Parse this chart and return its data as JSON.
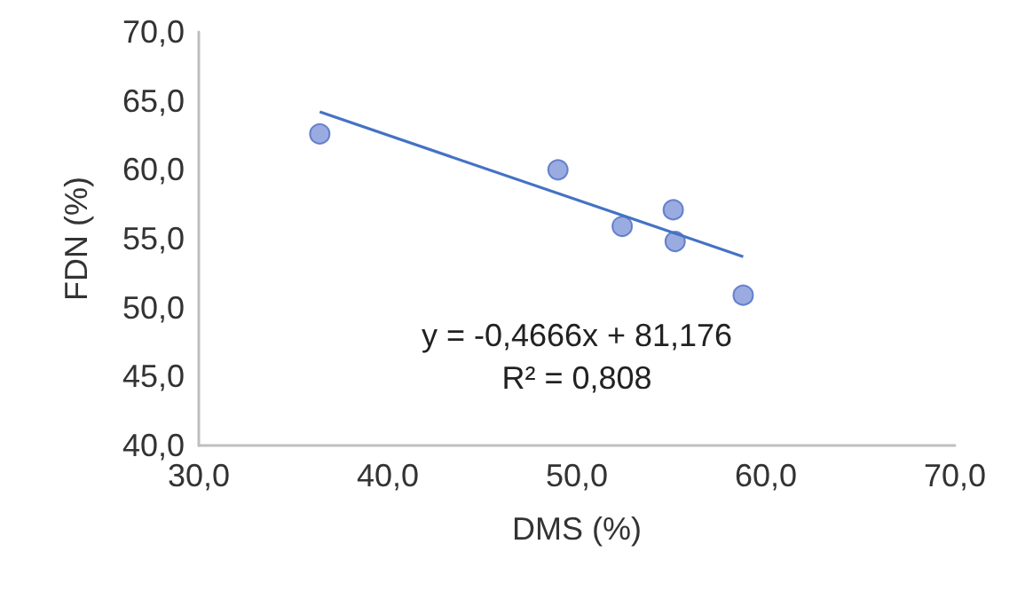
{
  "chart_data": {
    "type": "scatter",
    "xlabel": "DMS (%)",
    "ylabel": "FDN (%)",
    "xlim": [
      30,
      70
    ],
    "xticks": [
      {
        "value": 30,
        "label": "30,0"
      },
      {
        "value": 40,
        "label": "40,0"
      },
      {
        "value": 50,
        "label": "50,0"
      },
      {
        "value": 60,
        "label": "60,0"
      },
      {
        "value": 70,
        "label": "70,0"
      }
    ],
    "ylim": [
      40,
      70
    ],
    "yticks": [
      {
        "value": 40,
        "label": "40,0"
      },
      {
        "value": 45,
        "label": "45,0"
      },
      {
        "value": 50,
        "label": "50,0"
      },
      {
        "value": 55,
        "label": "55,0"
      },
      {
        "value": 60,
        "label": "60,0"
      },
      {
        "value": 65,
        "label": "65,0"
      },
      {
        "value": 70,
        "label": "70,0"
      }
    ],
    "grid": false,
    "series": [
      {
        "color": "#8096d8",
        "marker": "circle",
        "x": [
          36.4,
          49.0,
          52.4,
          55.1,
          55.2,
          58.8
        ],
        "values": [
          62.6,
          60.0,
          55.9,
          57.1,
          54.8,
          50.9
        ]
      },
      {
        "type": "line",
        "color": "#4472c4",
        "marker": "none",
        "line_style": "solid",
        "x": [
          36.4,
          58.8
        ],
        "values": [
          64.2,
          53.7
        ]
      }
    ],
    "annotations": [
      "y = -0,4666x + 81,176",
      "R² = 0,808"
    ]
  }
}
